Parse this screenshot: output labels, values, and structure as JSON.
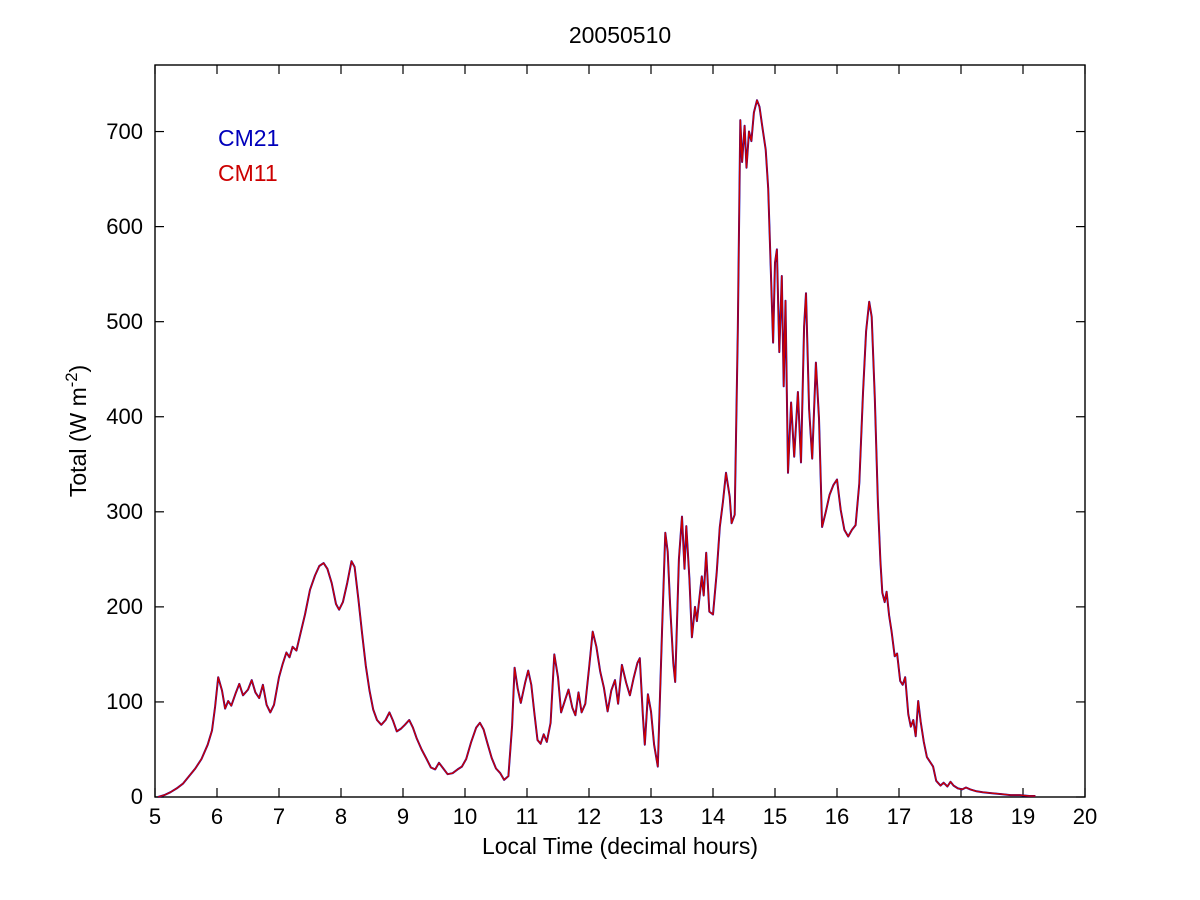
{
  "title": "20050510",
  "xlabel": "Local Time (decimal hours)",
  "ylabel": {
    "prefix": "Total (W m",
    "sup": "-2",
    "suffix": ")"
  },
  "legend": [
    {
      "label": "CM21",
      "color": "#0000bb"
    },
    {
      "label": "CM11",
      "color": "#cc0000"
    }
  ],
  "colors": {
    "background": "#ffffff",
    "axis": "#000000"
  },
  "chart_data": {
    "type": "line",
    "title": "20050510",
    "xlabel": "Local Time (decimal hours)",
    "ylabel": "Total (W m^-2)",
    "xlim": [
      5,
      20
    ],
    "ylim": [
      0,
      770
    ],
    "x_ticks": [
      5,
      6,
      7,
      8,
      9,
      10,
      11,
      12,
      13,
      14,
      15,
      16,
      17,
      18,
      19,
      20
    ],
    "y_ticks": [
      0,
      100,
      200,
      300,
      400,
      500,
      600,
      700
    ],
    "grid": false,
    "box": true,
    "tick_direction": "in",
    "legend_position": "inside-top-left-text-only",
    "note": "Two pyranometer traces (CM21 blue drawn under CM11 red) overlap almost exactly; points are [local_time_decimal_hours, total_irradiance_W_m-2]",
    "series": [
      {
        "name": "CM21",
        "color": "#0000bb",
        "points": "shared_points",
        "width": 2.0
      },
      {
        "name": "CM11",
        "color": "#cc0000",
        "points": "shared_points",
        "width": 1.4
      }
    ],
    "shared_points": [
      [
        5.05,
        0
      ],
      [
        5.15,
        2
      ],
      [
        5.25,
        5
      ],
      [
        5.35,
        9
      ],
      [
        5.45,
        14
      ],
      [
        5.55,
        22
      ],
      [
        5.65,
        30
      ],
      [
        5.75,
        40
      ],
      [
        5.85,
        55
      ],
      [
        5.92,
        70
      ],
      [
        5.97,
        95
      ],
      [
        6.02,
        126
      ],
      [
        6.08,
        112
      ],
      [
        6.13,
        93
      ],
      [
        6.18,
        101
      ],
      [
        6.23,
        96
      ],
      [
        6.3,
        109
      ],
      [
        6.36,
        119
      ],
      [
        6.42,
        107
      ],
      [
        6.5,
        113
      ],
      [
        6.56,
        123
      ],
      [
        6.62,
        110
      ],
      [
        6.68,
        104
      ],
      [
        6.74,
        118
      ],
      [
        6.8,
        97
      ],
      [
        6.86,
        89
      ],
      [
        6.92,
        97
      ],
      [
        7.0,
        126
      ],
      [
        7.06,
        140
      ],
      [
        7.12,
        152
      ],
      [
        7.17,
        147
      ],
      [
        7.22,
        158
      ],
      [
        7.28,
        154
      ],
      [
        7.35,
        173
      ],
      [
        7.42,
        192
      ],
      [
        7.5,
        218
      ],
      [
        7.58,
        233
      ],
      [
        7.65,
        243
      ],
      [
        7.72,
        246
      ],
      [
        7.78,
        240
      ],
      [
        7.85,
        225
      ],
      [
        7.92,
        203
      ],
      [
        7.97,
        197
      ],
      [
        8.03,
        205
      ],
      [
        8.1,
        225
      ],
      [
        8.17,
        248
      ],
      [
        8.22,
        242
      ],
      [
        8.28,
        208
      ],
      [
        8.34,
        172
      ],
      [
        8.4,
        138
      ],
      [
        8.46,
        112
      ],
      [
        8.52,
        92
      ],
      [
        8.58,
        81
      ],
      [
        8.65,
        76
      ],
      [
        8.72,
        81
      ],
      [
        8.78,
        89
      ],
      [
        8.84,
        80
      ],
      [
        8.9,
        69
      ],
      [
        8.97,
        72
      ],
      [
        9.03,
        76
      ],
      [
        9.1,
        81
      ],
      [
        9.16,
        73
      ],
      [
        9.22,
        62
      ],
      [
        9.3,
        50
      ],
      [
        9.38,
        40
      ],
      [
        9.45,
        31
      ],
      [
        9.52,
        29
      ],
      [
        9.58,
        36
      ],
      [
        9.65,
        30
      ],
      [
        9.72,
        24
      ],
      [
        9.8,
        25
      ],
      [
        9.88,
        29
      ],
      [
        9.95,
        32
      ],
      [
        10.02,
        40
      ],
      [
        10.1,
        58
      ],
      [
        10.18,
        73
      ],
      [
        10.24,
        78
      ],
      [
        10.3,
        71
      ],
      [
        10.36,
        57
      ],
      [
        10.43,
        41
      ],
      [
        10.5,
        30
      ],
      [
        10.57,
        25
      ],
      [
        10.63,
        18
      ],
      [
        10.7,
        22
      ],
      [
        10.76,
        75
      ],
      [
        10.8,
        136
      ],
      [
        10.85,
        114
      ],
      [
        10.9,
        99
      ],
      [
        10.97,
        120
      ],
      [
        11.02,
        133
      ],
      [
        11.07,
        118
      ],
      [
        11.12,
        88
      ],
      [
        11.17,
        60
      ],
      [
        11.22,
        56
      ],
      [
        11.27,
        66
      ],
      [
        11.32,
        58
      ],
      [
        11.38,
        78
      ],
      [
        11.44,
        150
      ],
      [
        11.5,
        126
      ],
      [
        11.55,
        89
      ],
      [
        11.62,
        103
      ],
      [
        11.67,
        113
      ],
      [
        11.73,
        94
      ],
      [
        11.78,
        86
      ],
      [
        11.83,
        110
      ],
      [
        11.88,
        89
      ],
      [
        11.94,
        98
      ],
      [
        12.0,
        135
      ],
      [
        12.06,
        174
      ],
      [
        12.12,
        158
      ],
      [
        12.18,
        132
      ],
      [
        12.24,
        115
      ],
      [
        12.3,
        90
      ],
      [
        12.36,
        112
      ],
      [
        12.42,
        123
      ],
      [
        12.47,
        98
      ],
      [
        12.53,
        139
      ],
      [
        12.6,
        120
      ],
      [
        12.66,
        107
      ],
      [
        12.72,
        125
      ],
      [
        12.78,
        141
      ],
      [
        12.82,
        146
      ],
      [
        12.87,
        85
      ],
      [
        12.9,
        55
      ],
      [
        12.95,
        108
      ],
      [
        13.0,
        90
      ],
      [
        13.05,
        55
      ],
      [
        13.11,
        32
      ],
      [
        13.18,
        180
      ],
      [
        13.23,
        278
      ],
      [
        13.27,
        258
      ],
      [
        13.31,
        200
      ],
      [
        13.36,
        141
      ],
      [
        13.39,
        121
      ],
      [
        13.45,
        250
      ],
      [
        13.5,
        295
      ],
      [
        13.54,
        240
      ],
      [
        13.57,
        285
      ],
      [
        13.62,
        230
      ],
      [
        13.66,
        168
      ],
      [
        13.71,
        200
      ],
      [
        13.74,
        185
      ],
      [
        13.82,
        232
      ],
      [
        13.85,
        212
      ],
      [
        13.89,
        257
      ],
      [
        13.94,
        195
      ],
      [
        14.0,
        192
      ],
      [
        14.06,
        236
      ],
      [
        14.11,
        284
      ],
      [
        14.16,
        310
      ],
      [
        14.21,
        341
      ],
      [
        14.27,
        316
      ],
      [
        14.3,
        288
      ],
      [
        14.35,
        297
      ],
      [
        14.4,
        490
      ],
      [
        14.44,
        712
      ],
      [
        14.47,
        668
      ],
      [
        14.51,
        706
      ],
      [
        14.54,
        662
      ],
      [
        14.58,
        700
      ],
      [
        14.62,
        690
      ],
      [
        14.66,
        720
      ],
      [
        14.71,
        733
      ],
      [
        14.75,
        726
      ],
      [
        14.8,
        703
      ],
      [
        14.85,
        681
      ],
      [
        14.89,
        640
      ],
      [
        14.93,
        558
      ],
      [
        14.97,
        478
      ],
      [
        15.0,
        562
      ],
      [
        15.03,
        576
      ],
      [
        15.07,
        468
      ],
      [
        15.11,
        548
      ],
      [
        15.14,
        432
      ],
      [
        15.17,
        522
      ],
      [
        15.21,
        341
      ],
      [
        15.26,
        415
      ],
      [
        15.31,
        358
      ],
      [
        15.37,
        426
      ],
      [
        15.42,
        352
      ],
      [
        15.47,
        495
      ],
      [
        15.5,
        530
      ],
      [
        15.55,
        408
      ],
      [
        15.6,
        356
      ],
      [
        15.66,
        457
      ],
      [
        15.71,
        398
      ],
      [
        15.76,
        284
      ],
      [
        15.82,
        300
      ],
      [
        15.88,
        318
      ],
      [
        15.94,
        328
      ],
      [
        16.0,
        334
      ],
      [
        16.06,
        302
      ],
      [
        16.12,
        281
      ],
      [
        16.18,
        274
      ],
      [
        16.24,
        281
      ],
      [
        16.3,
        286
      ],
      [
        16.36,
        330
      ],
      [
        16.42,
        425
      ],
      [
        16.47,
        490
      ],
      [
        16.52,
        521
      ],
      [
        16.56,
        505
      ],
      [
        16.61,
        420
      ],
      [
        16.66,
        310
      ],
      [
        16.7,
        248
      ],
      [
        16.73,
        215
      ],
      [
        16.77,
        205
      ],
      [
        16.8,
        216
      ],
      [
        16.84,
        191
      ],
      [
        16.88,
        174
      ],
      [
        16.93,
        148
      ],
      [
        16.97,
        151
      ],
      [
        17.02,
        122
      ],
      [
        17.06,
        118
      ],
      [
        17.1,
        126
      ],
      [
        17.15,
        87
      ],
      [
        17.19,
        74
      ],
      [
        17.23,
        81
      ],
      [
        17.27,
        64
      ],
      [
        17.31,
        101
      ],
      [
        17.35,
        79
      ],
      [
        17.4,
        58
      ],
      [
        17.45,
        42
      ],
      [
        17.5,
        37
      ],
      [
        17.55,
        32
      ],
      [
        17.6,
        17
      ],
      [
        17.67,
        12
      ],
      [
        17.72,
        15
      ],
      [
        17.78,
        11
      ],
      [
        17.83,
        16
      ],
      [
        17.88,
        12
      ],
      [
        17.95,
        9
      ],
      [
        18.02,
        8
      ],
      [
        18.08,
        10
      ],
      [
        18.15,
        8
      ],
      [
        18.25,
        6
      ],
      [
        18.35,
        5
      ],
      [
        18.5,
        4
      ],
      [
        18.65,
        3
      ],
      [
        18.8,
        2
      ],
      [
        18.95,
        2
      ],
      [
        19.1,
        1
      ],
      [
        19.2,
        1
      ]
    ]
  }
}
